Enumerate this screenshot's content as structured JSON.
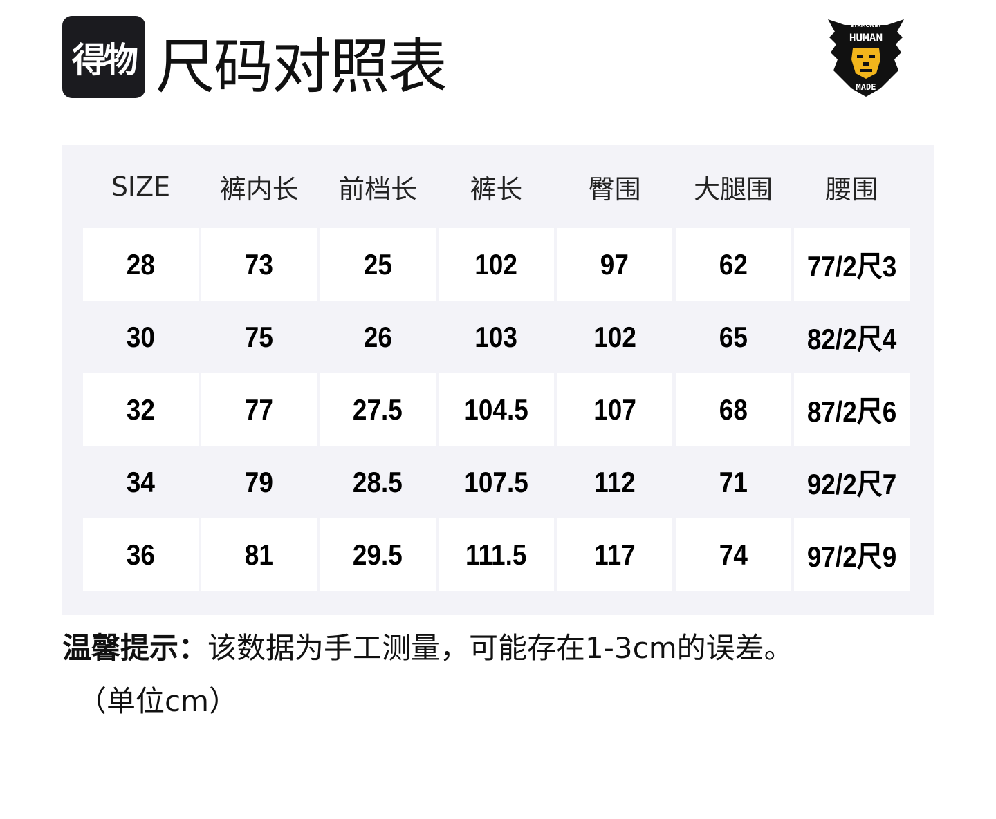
{
  "logo": {
    "text": "得物"
  },
  "title": "尺码对照表",
  "brand_logo": {
    "top_text": "STRMCWBY",
    "main": "HUMAN",
    "bottom": "MADE",
    "colors": {
      "body": "#111111",
      "face": "#f2b51c"
    }
  },
  "table": {
    "headers": [
      "SIZE",
      "裤内长",
      "前档长",
      "裤长",
      "臀围",
      "大腿围",
      "腰围"
    ],
    "rows": [
      [
        "28",
        "73",
        "25",
        "102",
        "97",
        "62",
        "77/2尺3"
      ],
      [
        "30",
        "75",
        "26",
        "103",
        "102",
        "65",
        "82/2尺4"
      ],
      [
        "32",
        "77",
        "27.5",
        "104.5",
        "107",
        "68",
        "87/2尺6"
      ],
      [
        "34",
        "79",
        "28.5",
        "107.5",
        "112",
        "71",
        "92/2尺7"
      ],
      [
        "36",
        "81",
        "29.5",
        "111.5",
        "117",
        "74",
        "97/2尺9"
      ]
    ]
  },
  "note": {
    "label": "温馨提示：",
    "text": "该数据为手工测量，可能存在1-3cm的误差。",
    "unit": "（单位cm）"
  },
  "colors": {
    "panel": "#f3f3f8",
    "cell": "#ffffff"
  }
}
